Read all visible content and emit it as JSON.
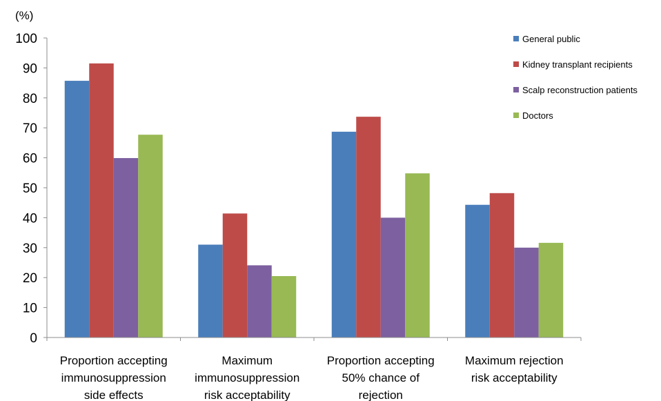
{
  "chart_data": {
    "type": "bar",
    "ylabel": "(%)",
    "ylim": [
      0,
      100
    ],
    "yticks": [
      0,
      10,
      20,
      30,
      40,
      50,
      60,
      70,
      80,
      90,
      100
    ],
    "categories": [
      [
        "Proportion accepting",
        "immunosuppression",
        "side effects"
      ],
      [
        "Maximum",
        "immunosuppression",
        "risk acceptability"
      ],
      [
        "Proportion accepting",
        "50% chance of",
        "rejection"
      ],
      [
        "Maximum rejection",
        "risk acceptability"
      ]
    ],
    "series": [
      {
        "name": "General public",
        "color": "#4a7ebb",
        "values": [
          85.7,
          31,
          68.7,
          44.3
        ]
      },
      {
        "name": "Kidney transplant recipients",
        "color": "#be4b48",
        "values": [
          91.5,
          41.4,
          73.7,
          48.2
        ]
      },
      {
        "name": "Scalp reconstruction patients",
        "color": "#7d60a0",
        "values": [
          59.9,
          24.1,
          40,
          30
        ]
      },
      {
        "name": "Doctors",
        "color": "#98b954",
        "values": [
          67.7,
          20.5,
          54.8,
          31.6
        ]
      }
    ],
    "legend_position": "top-right",
    "grid": false
  }
}
